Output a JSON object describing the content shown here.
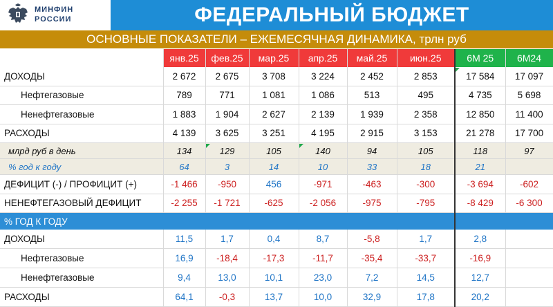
{
  "logo": {
    "line1": "МИНФИН",
    "line2": "РОССИИ"
  },
  "title": "ФЕДЕРАЛЬНЫЙ БЮДЖЕТ",
  "subtitle": "ОСНОВНЫЕ ПОКАЗАТЕЛИ – ЕЖЕМЕСЯЧНАЯ ДИНАМИКА, трлн руб",
  "columns": [
    "янв.25",
    "фев.25",
    "мар.25",
    "апр.25",
    "май.25",
    "июн.25",
    "6М 25",
    "6М24"
  ],
  "rows": [
    {
      "label": "ДОХОДЫ",
      "values": [
        "2 672",
        "2 675",
        "3 708",
        "3 224",
        "2 452",
        "2 853",
        "17 584",
        "17 097"
      ]
    },
    {
      "label": "Нефтегазовые",
      "values": [
        "789",
        "771",
        "1 081",
        "1 086",
        "513",
        "495",
        "4 735",
        "5 698"
      ]
    },
    {
      "label": "Ненефтегазовые",
      "values": [
        "1 883",
        "1 904",
        "2 627",
        "2 139",
        "1 939",
        "2 358",
        "12 850",
        "11 400"
      ]
    },
    {
      "label": "РАСХОДЫ",
      "values": [
        "4 139",
        "3 625",
        "3 251",
        "4 195",
        "2 915",
        "3 153",
        "21 278",
        "17 700"
      ]
    },
    {
      "label": "млрд руб в день",
      "values": [
        "134",
        "129",
        "105",
        "140",
        "94",
        "105",
        "118",
        "97"
      ]
    },
    {
      "label": "% год к году",
      "values": [
        "64",
        "3",
        "14",
        "10",
        "33",
        "18",
        "21",
        ""
      ]
    },
    {
      "label": "ДЕФИЦИТ (-) / ПРОФИЦИТ (+)",
      "values": [
        "-1 466",
        "-950",
        "456",
        "-971",
        "-463",
        "-300",
        "-3 694",
        "-602"
      ]
    },
    {
      "label": "НЕНЕФТЕГАЗОВЫЙ ДЕФИЦИТ",
      "values": [
        "-2 255",
        "-1 721",
        "-625",
        "-2 056",
        "-975",
        "-795",
        "-8 429",
        "-6 300"
      ]
    }
  ],
  "section_label": "% ГОД К ГОДУ",
  "pct_rows": [
    {
      "label": "ДОХОДЫ",
      "values": [
        "11,5",
        "1,7",
        "0,4",
        "8,7",
        "-5,8",
        "1,7",
        "2,8",
        ""
      ]
    },
    {
      "label": "Нефтегазовые",
      "values": [
        "16,9",
        "-18,4",
        "-17,3",
        "-11,7",
        "-35,4",
        "-33,7",
        "-16,9",
        ""
      ]
    },
    {
      "label": "Ненефтегазовые",
      "values": [
        "9,4",
        "13,0",
        "10,1",
        "23,0",
        "7,2",
        "14,5",
        "12,7",
        ""
      ]
    },
    {
      "label": "РАСХОДЫ",
      "values": [
        "64,1",
        "-0,3",
        "13,7",
        "10,0",
        "32,9",
        "17,8",
        "20,2",
        ""
      ]
    }
  ],
  "colors": {
    "header_blue": "#1e8dd6",
    "subtitle_gold": "#c58c0a",
    "month_red": "#f03a3a",
    "period_green": "#1fb34b",
    "negative": "#cc1f1f",
    "positive": "#1e74c6"
  }
}
